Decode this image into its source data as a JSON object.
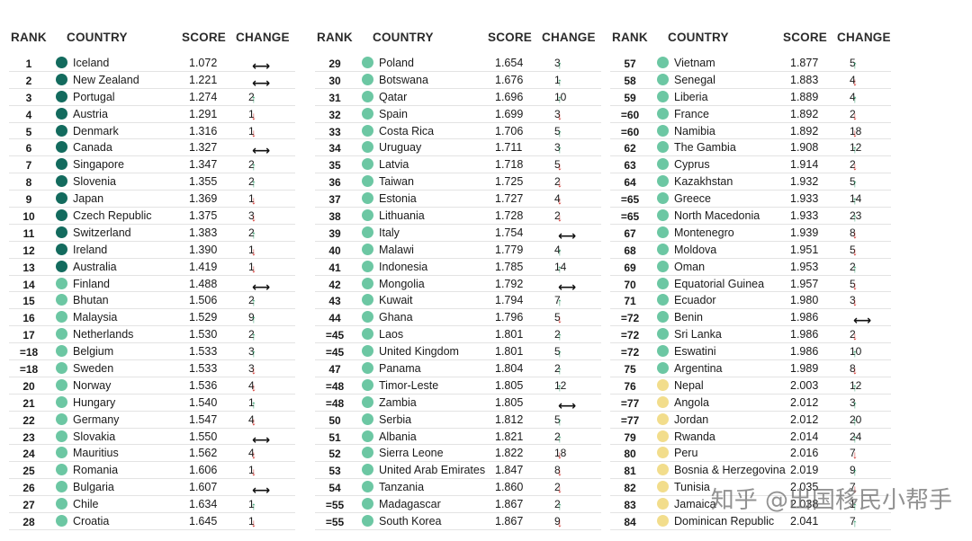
{
  "colors": {
    "dark_green": "#136b5e",
    "mid_green": "#6cc7a3",
    "yellow": "#f2dd8c",
    "up": "#2e9c6a",
    "down": "#d2312b"
  },
  "headers": {
    "rank": "RANK",
    "country": "COUNTRY",
    "score": "SCORE",
    "change": "CHANGE"
  },
  "tables": [
    {
      "rows": [
        {
          "rank": "1",
          "country": "Iceland",
          "score": "1.072",
          "dir": "same",
          "change": "",
          "tier": "dark"
        },
        {
          "rank": "2",
          "country": "New Zealand",
          "score": "1.221",
          "dir": "same",
          "change": "",
          "tier": "dark"
        },
        {
          "rank": "3",
          "country": "Portugal",
          "score": "1.274",
          "dir": "up",
          "change": "2",
          "tier": "dark"
        },
        {
          "rank": "4",
          "country": "Austria",
          "score": "1.291",
          "dir": "down",
          "change": "1",
          "tier": "dark"
        },
        {
          "rank": "5",
          "country": "Denmark",
          "score": "1.316",
          "dir": "down",
          "change": "1",
          "tier": "dark"
        },
        {
          "rank": "6",
          "country": "Canada",
          "score": "1.327",
          "dir": "same",
          "change": "",
          "tier": "dark"
        },
        {
          "rank": "7",
          "country": "Singapore",
          "score": "1.347",
          "dir": "up",
          "change": "2",
          "tier": "dark"
        },
        {
          "rank": "8",
          "country": "Slovenia",
          "score": "1.355",
          "dir": "up",
          "change": "2",
          "tier": "dark"
        },
        {
          "rank": "9",
          "country": "Japan",
          "score": "1.369",
          "dir": "down",
          "change": "1",
          "tier": "dark"
        },
        {
          "rank": "10",
          "country": "Czech Republic",
          "score": "1.375",
          "dir": "down",
          "change": "3",
          "tier": "dark"
        },
        {
          "rank": "11",
          "country": "Switzerland",
          "score": "1.383",
          "dir": "up",
          "change": "2",
          "tier": "dark"
        },
        {
          "rank": "12",
          "country": "Ireland",
          "score": "1.390",
          "dir": "down",
          "change": "1",
          "tier": "dark"
        },
        {
          "rank": "13",
          "country": "Australia",
          "score": "1.419",
          "dir": "down",
          "change": "1",
          "tier": "dark"
        },
        {
          "rank": "14",
          "country": "Finland",
          "score": "1.488",
          "dir": "same",
          "change": "",
          "tier": "mid"
        },
        {
          "rank": "15",
          "country": "Bhutan",
          "score": "1.506",
          "dir": "up",
          "change": "2",
          "tier": "mid"
        },
        {
          "rank": "16",
          "country": "Malaysia",
          "score": "1.529",
          "dir": "up",
          "change": "9",
          "tier": "mid"
        },
        {
          "rank": "17",
          "country": "Netherlands",
          "score": "1.530",
          "dir": "up",
          "change": "2",
          "tier": "mid"
        },
        {
          "rank": "=18",
          "country": "Belgium",
          "score": "1.533",
          "dir": "up",
          "change": "3",
          "tier": "mid"
        },
        {
          "rank": "=18",
          "country": "Sweden",
          "score": "1.533",
          "dir": "down",
          "change": "3",
          "tier": "mid"
        },
        {
          "rank": "20",
          "country": "Norway",
          "score": "1.536",
          "dir": "down",
          "change": "4",
          "tier": "mid"
        },
        {
          "rank": "21",
          "country": "Hungary",
          "score": "1.540",
          "dir": "up",
          "change": "1",
          "tier": "mid"
        },
        {
          "rank": "22",
          "country": "Germany",
          "score": "1.547",
          "dir": "down",
          "change": "4",
          "tier": "mid"
        },
        {
          "rank": "23",
          "country": "Slovakia",
          "score": "1.550",
          "dir": "same",
          "change": "",
          "tier": "mid"
        },
        {
          "rank": "24",
          "country": "Mauritius",
          "score": "1.562",
          "dir": "down",
          "change": "4",
          "tier": "mid"
        },
        {
          "rank": "25",
          "country": "Romania",
          "score": "1.606",
          "dir": "down",
          "change": "1",
          "tier": "mid"
        },
        {
          "rank": "26",
          "country": "Bulgaria",
          "score": "1.607",
          "dir": "same",
          "change": "",
          "tier": "mid"
        },
        {
          "rank": "27",
          "country": "Chile",
          "score": "1.634",
          "dir": "up",
          "change": "1",
          "tier": "mid"
        },
        {
          "rank": "28",
          "country": "Croatia",
          "score": "1.645",
          "dir": "down",
          "change": "1",
          "tier": "mid"
        }
      ]
    },
    {
      "rows": [
        {
          "rank": "29",
          "country": "Poland",
          "score": "1.654",
          "dir": "up",
          "change": "3",
          "tier": "mid"
        },
        {
          "rank": "30",
          "country": "Botswana",
          "score": "1.676",
          "dir": "up",
          "change": "1",
          "tier": "mid"
        },
        {
          "rank": "31",
          "country": "Qatar",
          "score": "1.696",
          "dir": "up",
          "change": "10",
          "tier": "mid"
        },
        {
          "rank": "32",
          "country": "Spain",
          "score": "1.699",
          "dir": "down",
          "change": "3",
          "tier": "mid"
        },
        {
          "rank": "33",
          "country": "Costa Rica",
          "score": "1.706",
          "dir": "up",
          "change": "5",
          "tier": "mid"
        },
        {
          "rank": "34",
          "country": "Uruguay",
          "score": "1.711",
          "dir": "up",
          "change": "3",
          "tier": "mid"
        },
        {
          "rank": "35",
          "country": "Latvia",
          "score": "1.718",
          "dir": "down",
          "change": "5",
          "tier": "mid"
        },
        {
          "rank": "36",
          "country": "Taiwan",
          "score": "1.725",
          "dir": "down",
          "change": "2",
          "tier": "mid"
        },
        {
          "rank": "37",
          "country": "Estonia",
          "score": "1.727",
          "dir": "down",
          "change": "4",
          "tier": "mid"
        },
        {
          "rank": "38",
          "country": "Lithuania",
          "score": "1.728",
          "dir": "down",
          "change": "2",
          "tier": "mid"
        },
        {
          "rank": "39",
          "country": "Italy",
          "score": "1.754",
          "dir": "same",
          "change": "",
          "tier": "mid"
        },
        {
          "rank": "40",
          "country": "Malawi",
          "score": "1.779",
          "dir": "up",
          "change": "4",
          "tier": "mid"
        },
        {
          "rank": "41",
          "country": "Indonesia",
          "score": "1.785",
          "dir": "up",
          "change": "14",
          "tier": "mid"
        },
        {
          "rank": "42",
          "country": "Mongolia",
          "score": "1.792",
          "dir": "same",
          "change": "",
          "tier": "mid"
        },
        {
          "rank": "43",
          "country": "Kuwait",
          "score": "1.794",
          "dir": "up",
          "change": "7",
          "tier": "mid"
        },
        {
          "rank": "44",
          "country": "Ghana",
          "score": "1.796",
          "dir": "down",
          "change": "5",
          "tier": "mid"
        },
        {
          "rank": "=45",
          "country": "Laos",
          "score": "1.801",
          "dir": "up",
          "change": "2",
          "tier": "mid"
        },
        {
          "rank": "=45",
          "country": "United Kingdom",
          "score": "1.801",
          "dir": "up",
          "change": "5",
          "tier": "mid"
        },
        {
          "rank": "47",
          "country": "Panama",
          "score": "1.804",
          "dir": "up",
          "change": "2",
          "tier": "mid"
        },
        {
          "rank": "=48",
          "country": "Timor-Leste",
          "score": "1.805",
          "dir": "up",
          "change": "12",
          "tier": "mid"
        },
        {
          "rank": "=48",
          "country": "Zambia",
          "score": "1.805",
          "dir": "same",
          "change": "",
          "tier": "mid"
        },
        {
          "rank": "50",
          "country": "Serbia",
          "score": "1.812",
          "dir": "up",
          "change": "5",
          "tier": "mid"
        },
        {
          "rank": "51",
          "country": "Albania",
          "score": "1.821",
          "dir": "up",
          "change": "2",
          "tier": "mid"
        },
        {
          "rank": "52",
          "country": "Sierra Leone",
          "score": "1.822",
          "dir": "down",
          "change": "18",
          "tier": "mid"
        },
        {
          "rank": "53",
          "country": "United Arab Emirates",
          "score": "1.847",
          "dir": "down",
          "change": "8",
          "tier": "mid"
        },
        {
          "rank": "54",
          "country": "Tanzania",
          "score": "1.860",
          "dir": "down",
          "change": "2",
          "tier": "mid"
        },
        {
          "rank": "=55",
          "country": "Madagascar",
          "score": "1.867",
          "dir": "up",
          "change": "2",
          "tier": "mid"
        },
        {
          "rank": "=55",
          "country": "South Korea",
          "score": "1.867",
          "dir": "down",
          "change": "9",
          "tier": "mid"
        }
      ]
    },
    {
      "rows": [
        {
          "rank": "57",
          "country": "Vietnam",
          "score": "1.877",
          "dir": "up",
          "change": "5",
          "tier": "mid"
        },
        {
          "rank": "58",
          "country": "Senegal",
          "score": "1.883",
          "dir": "down",
          "change": "4",
          "tier": "mid"
        },
        {
          "rank": "59",
          "country": "Liberia",
          "score": "1.889",
          "dir": "up",
          "change": "4",
          "tier": "mid"
        },
        {
          "rank": "=60",
          "country": "France",
          "score": "1.892",
          "dir": "down",
          "change": "2",
          "tier": "mid"
        },
        {
          "rank": "=60",
          "country": "Namibia",
          "score": "1.892",
          "dir": "down",
          "change": "18",
          "tier": "mid"
        },
        {
          "rank": "62",
          "country": "The Gambia",
          "score": "1.908",
          "dir": "up",
          "change": "12",
          "tier": "mid"
        },
        {
          "rank": "63",
          "country": "Cyprus",
          "score": "1.914",
          "dir": "down",
          "change": "2",
          "tier": "mid"
        },
        {
          "rank": "64",
          "country": "Kazakhstan",
          "score": "1.932",
          "dir": "up",
          "change": "5",
          "tier": "mid"
        },
        {
          "rank": "=65",
          "country": "Greece",
          "score": "1.933",
          "dir": "up",
          "change": "14",
          "tier": "mid"
        },
        {
          "rank": "=65",
          "country": "North Macedonia",
          "score": "1.933",
          "dir": "up",
          "change": "23",
          "tier": "mid"
        },
        {
          "rank": "67",
          "country": "Montenegro",
          "score": "1.939",
          "dir": "down",
          "change": "8",
          "tier": "mid"
        },
        {
          "rank": "68",
          "country": "Moldova",
          "score": "1.951",
          "dir": "down",
          "change": "5",
          "tier": "mid"
        },
        {
          "rank": "69",
          "country": "Oman",
          "score": "1.953",
          "dir": "up",
          "change": "2",
          "tier": "mid"
        },
        {
          "rank": "70",
          "country": "Equatorial Guinea",
          "score": "1.957",
          "dir": "down",
          "change": "5",
          "tier": "mid"
        },
        {
          "rank": "71",
          "country": "Ecuador",
          "score": "1.980",
          "dir": "down",
          "change": "3",
          "tier": "mid"
        },
        {
          "rank": "=72",
          "country": "Benin",
          "score": "1.986",
          "dir": "same",
          "change": "",
          "tier": "mid"
        },
        {
          "rank": "=72",
          "country": "Sri Lanka",
          "score": "1.986",
          "dir": "down",
          "change": "2",
          "tier": "mid"
        },
        {
          "rank": "=72",
          "country": "Eswatini",
          "score": "1.986",
          "dir": "up",
          "change": "10",
          "tier": "mid"
        },
        {
          "rank": "75",
          "country": "Argentina",
          "score": "1.989",
          "dir": "down",
          "change": "8",
          "tier": "mid"
        },
        {
          "rank": "76",
          "country": "Nepal",
          "score": "2.003",
          "dir": "up",
          "change": "12",
          "tier": "yellow"
        },
        {
          "rank": "=77",
          "country": "Angola",
          "score": "2.012",
          "dir": "up",
          "change": "3",
          "tier": "yellow"
        },
        {
          "rank": "=77",
          "country": "Jordan",
          "score": "2.012",
          "dir": "up",
          "change": "20",
          "tier": "yellow"
        },
        {
          "rank": "79",
          "country": "Rwanda",
          "score": "2.014",
          "dir": "up",
          "change": "24",
          "tier": "yellow"
        },
        {
          "rank": "80",
          "country": "Peru",
          "score": "2.016",
          "dir": "down",
          "change": "7",
          "tier": "yellow"
        },
        {
          "rank": "81",
          "country": "Bosnia & Herzegovina",
          "score": "2.019",
          "dir": "up",
          "change": "9",
          "tier": "yellow"
        },
        {
          "rank": "82",
          "country": "Tunisia",
          "score": "2.035",
          "dir": "down",
          "change": "7",
          "tier": "yellow"
        },
        {
          "rank": "83",
          "country": "Jamaica",
          "score": "2.038",
          "dir": "up",
          "change": "1",
          "tier": "yellow"
        },
        {
          "rank": "84",
          "country": "Dominican Republic",
          "score": "2.041",
          "dir": "up",
          "change": "7",
          "tier": "yellow"
        }
      ]
    }
  ],
  "watermark": "知乎 @出国移民小帮手"
}
